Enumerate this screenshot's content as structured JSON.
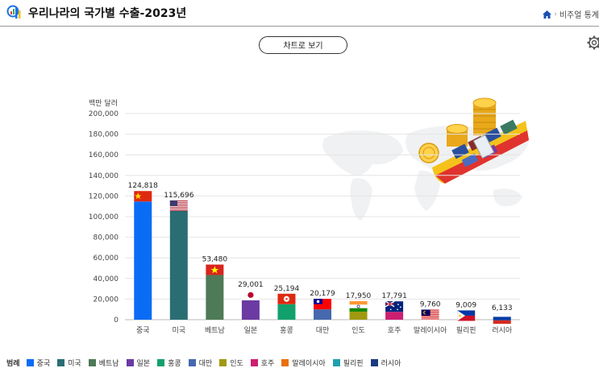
{
  "header": {
    "title": "우리나라의 국가별 수출-2023년",
    "breadcrumb": "비주얼 통계"
  },
  "toolbar": {
    "chart_button_label": "차트로 보기"
  },
  "icons": {
    "logo": "bar-chart-magnifier-icon",
    "home": "home-icon",
    "settings": "gear-icon"
  },
  "colors": {
    "중국": "#0a6cf5",
    "미국": "#2a6e73",
    "베트남": "#4e7a57",
    "일본": "#6b3aa2",
    "홍콩": "#12a16d",
    "대만": "#4668ae",
    "인도": "#a09a10",
    "호주": "#cc1f72",
    "말레이시아": "#e8700c",
    "필리핀": "#20a0b0",
    "러시아": "#1b3a80"
  },
  "legend_title": "범례",
  "chart_data": {
    "type": "bar",
    "unit_label": "백만 달러",
    "categories": [
      "중국",
      "미국",
      "베트남",
      "일본",
      "홍콩",
      "대만",
      "인도",
      "호주",
      "말레이시아",
      "필리핀",
      "러시아"
    ],
    "values": [
      124818,
      115696,
      53480,
      29001,
      25194,
      20179,
      17950,
      17791,
      9760,
      9009,
      6133
    ],
    "value_labels": [
      "124,818",
      "115,696",
      "53,480",
      "29,001",
      "25,194",
      "20,179",
      "17,950",
      "17,791",
      "9,760",
      "9,009",
      "6,133"
    ],
    "ylim": [
      0,
      200000
    ],
    "yticks": [
      0,
      20000,
      40000,
      60000,
      80000,
      100000,
      120000,
      140000,
      160000,
      180000,
      200000
    ],
    "ytick_labels": [
      "0",
      "20,000",
      "40,000",
      "60,000",
      "80,000",
      "100,000",
      "120,000",
      "140,000",
      "160,000",
      "180,000",
      "200,000"
    ],
    "grid": true,
    "legend": "bottom"
  }
}
